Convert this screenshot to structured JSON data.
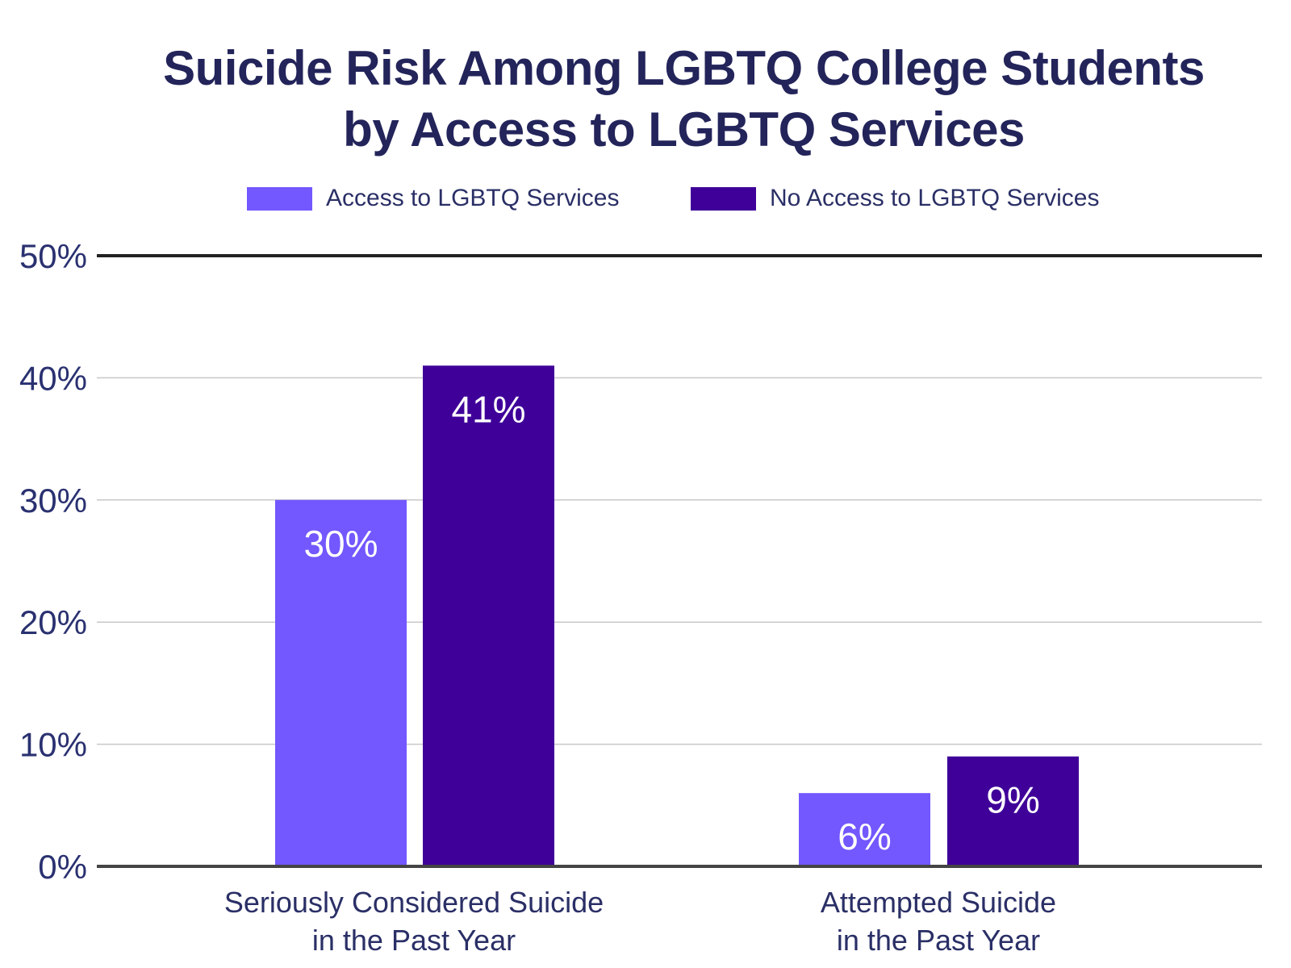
{
  "chart_data": {
    "type": "bar",
    "title": "Suicide Risk Among LGBTQ College Students by Access to LGBTQ Services",
    "title_lines": [
      "Suicide Risk Among LGBTQ College Students",
      "by Access to LGBTQ Services"
    ],
    "categories": [
      [
        "Seriously Considered Suicide",
        "in the Past Year"
      ],
      [
        "Attempted Suicide",
        "in the Past Year"
      ]
    ],
    "series": [
      {
        "name": "Access to LGBTQ Services",
        "color": "#7357ff",
        "values": [
          30,
          6
        ],
        "labels": [
          "30%",
          "6%"
        ]
      },
      {
        "name": "No Access to LGBTQ Services",
        "color": "#3f0099",
        "values": [
          41,
          9
        ],
        "labels": [
          "41%",
          "9%"
        ]
      }
    ],
    "ylim": [
      0,
      50
    ],
    "yticks": [
      0,
      10,
      20,
      30,
      40,
      50
    ],
    "ytick_labels": [
      "0%",
      "10%",
      "20%",
      "30%",
      "40%",
      "50%"
    ],
    "grid": true,
    "legend_position": "top"
  }
}
